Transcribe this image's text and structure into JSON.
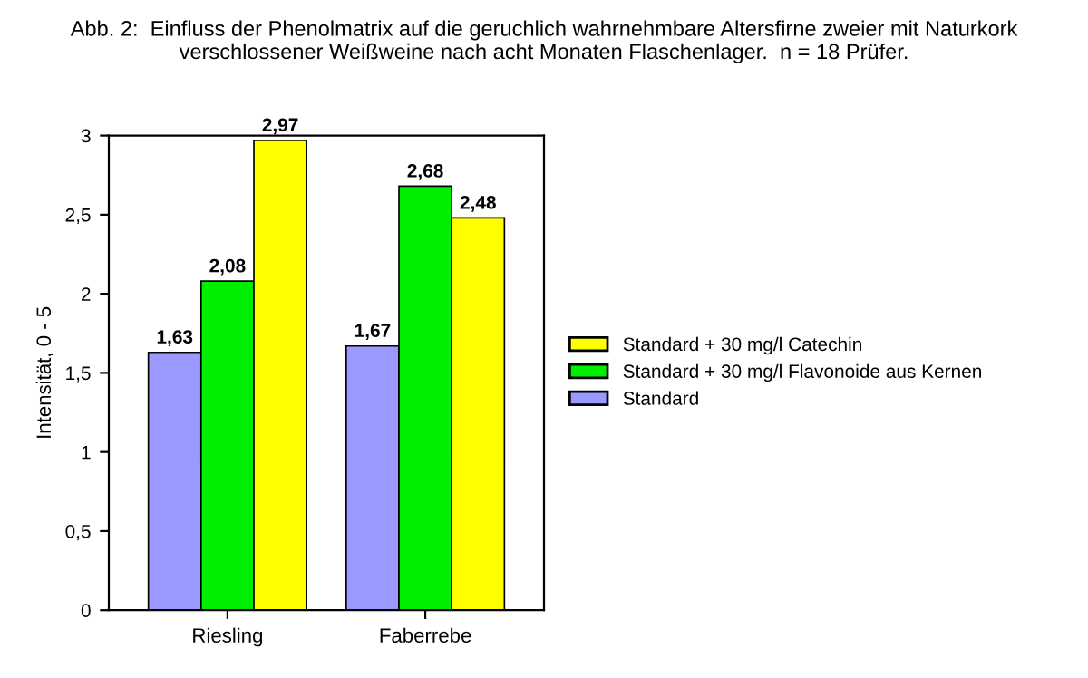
{
  "chart_data": {
    "type": "bar",
    "title": "Abb. 2:  Einfluss der Phenolmatrix auf die geruchlich wahrnehmbare Altersfirne zweier mit Naturkork verschlossener Weißweine nach acht Monaten Flaschenlager.  n = 18 Prüfer.",
    "ylabel": "Intensität, 0 - 5",
    "categories": [
      "Riesling",
      "Faberrebe"
    ],
    "series": [
      {
        "name": "Standard",
        "color": "#9999ff",
        "values": [
          1.63,
          1.67
        ],
        "value_labels": [
          "1,63",
          "1,67"
        ]
      },
      {
        "name": "Standard + 30 mg/l Flavonoide aus Kernen",
        "color": "#00ee00",
        "values": [
          2.08,
          2.68
        ],
        "value_labels": [
          "2,08",
          "2,68"
        ]
      },
      {
        "name": "Standard + 30 mg/l Catechin",
        "color": "#ffff00",
        "values": [
          2.97,
          2.48
        ],
        "value_labels": [
          "2,97",
          "2,48"
        ]
      }
    ],
    "ylim": [
      0,
      3
    ],
    "yticks": [
      0,
      {
        "value": 0.5,
        "label": "0,5"
      },
      1,
      {
        "value": 1.5,
        "label": "1,5"
      },
      2,
      {
        "value": 2.5,
        "label": "2,5"
      },
      3
    ],
    "grid": false,
    "legend": "right"
  }
}
